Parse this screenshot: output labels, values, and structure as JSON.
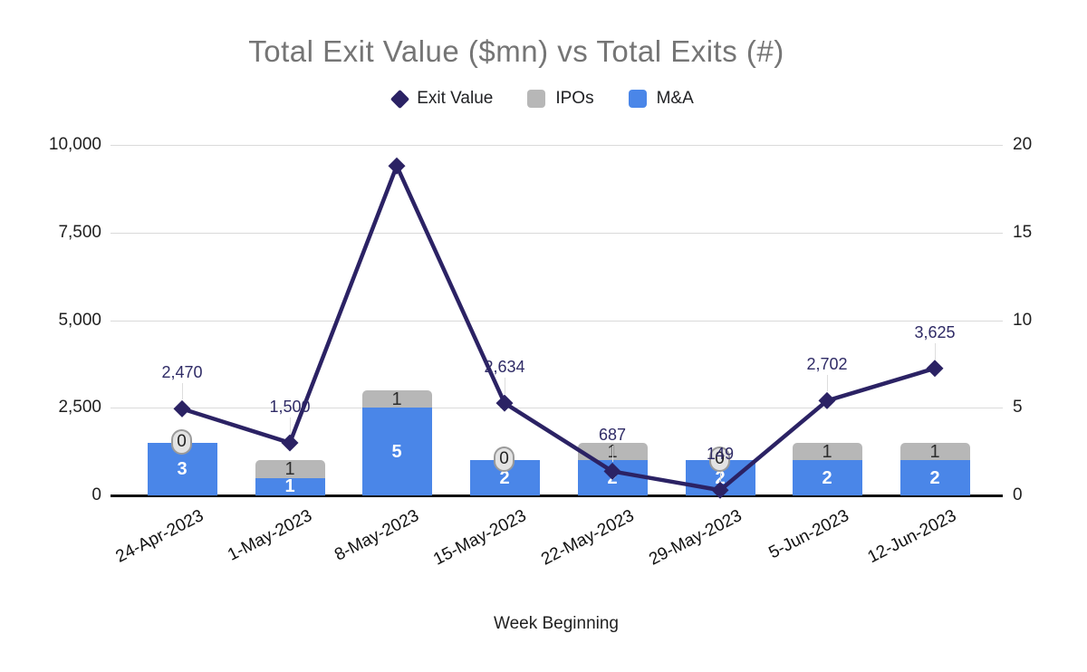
{
  "title": "Total Exit Value ($mn) vs Total Exits (#)",
  "x_axis_title": "Week Beginning",
  "legend": {
    "items": [
      {
        "label": "Exit Value",
        "marker": "diamond-icon",
        "color": "#2b2264"
      },
      {
        "label": "IPOs",
        "marker": "square-icon",
        "color": "#b7b7b7"
      },
      {
        "label": "M&A",
        "marker": "square-icon",
        "color": "#4a86e8"
      }
    ]
  },
  "colors": {
    "line": "#2b2264",
    "ipo_bar": "#b7b7b7",
    "mna_bar": "#4a86e8",
    "title_text": "#757575",
    "axis_text": "#1f1f1f",
    "data_label_text": "#2f2b66",
    "gridline": "#dadada",
    "axis_baseline": "#111111"
  },
  "chart_data": {
    "type": "combo (stacked bar + line)",
    "categories": [
      "24-Apr-2023",
      "1-May-2023",
      "8-May-2023",
      "15-May-2023",
      "22-May-2023",
      "29-May-2023",
      "5-Jun-2023",
      "12-Jun-2023"
    ],
    "series": [
      {
        "name": "Exit Value",
        "type": "line",
        "axis": "left",
        "values": [
          2470,
          1500,
          9400,
          2634,
          687,
          149,
          2702,
          3625
        ],
        "point_labels": [
          "2,470",
          "1,500",
          null,
          "2,634",
          "687",
          "149",
          "2,702",
          "3,625"
        ],
        "note": "peak point at 8-May-2023 (~9,400, estimated from axis) has no visible data label"
      },
      {
        "name": "IPOs",
        "type": "bar-stacked-top",
        "axis": "right",
        "values": [
          0,
          1,
          1,
          0,
          1,
          0,
          1,
          1
        ],
        "labels": [
          "0",
          "1",
          "1",
          "0",
          "1",
          "0",
          "1",
          "1"
        ]
      },
      {
        "name": "M&A",
        "type": "bar-stacked-bottom",
        "axis": "right",
        "values": [
          3,
          1,
          5,
          2,
          2,
          2,
          2,
          2
        ],
        "labels": [
          "3",
          "1",
          "5",
          "2",
          "2",
          "2",
          "2",
          "2"
        ]
      }
    ],
    "left_axis": {
      "ticks": [
        "0",
        "2,500",
        "5,000",
        "7,500",
        "10,000"
      ],
      "min": 0,
      "max": 10000
    },
    "right_axis": {
      "ticks": [
        "0",
        "5",
        "10",
        "15",
        "20"
      ],
      "min": 0,
      "max": 20
    },
    "grid": "horizontal only",
    "legend_position": "top center",
    "zero_value_label_style": "gray outlined pill"
  }
}
